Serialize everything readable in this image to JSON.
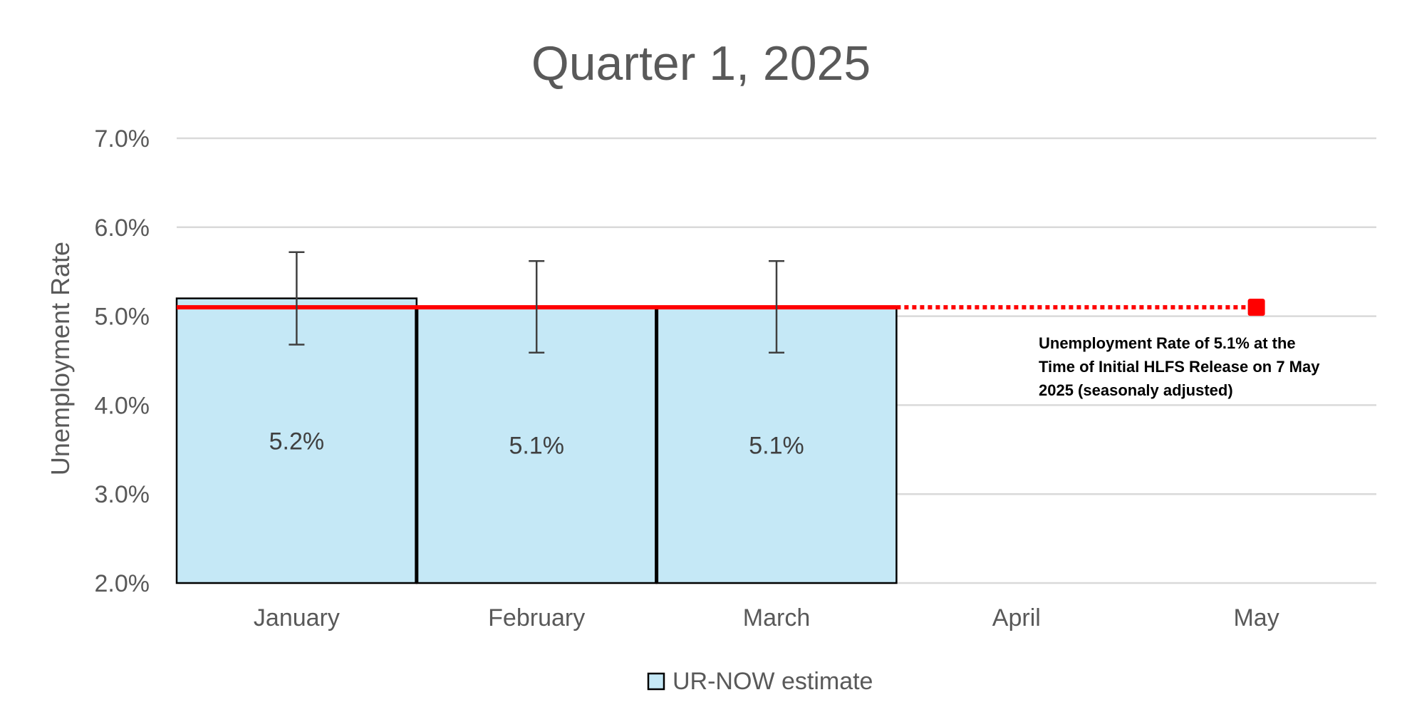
{
  "chart_data": {
    "type": "bar",
    "title": "Quarter 1, 2025",
    "xlabel": "",
    "ylabel": "Unemployment Rate",
    "categories": [
      "January",
      "February",
      "March",
      "April",
      "May"
    ],
    "series": [
      {
        "name": "UR-NOW estimate",
        "values": [
          5.2,
          5.1,
          5.1,
          null,
          null
        ],
        "labels": [
          "5.2%",
          "5.1%",
          "5.1%",
          "",
          ""
        ],
        "error_low": [
          4.68,
          4.59,
          4.59,
          null,
          null
        ],
        "error_high": [
          5.72,
          5.62,
          5.62,
          null,
          null
        ],
        "color": "#C5E8F6"
      }
    ],
    "reference_line": {
      "value": 5.1,
      "solid_until": "March",
      "dotted_until": "May",
      "color": "#FF0000",
      "annotation": [
        "Unemployment Rate of 5.1% at the",
        "Time of Initial HLFS Release on 7 May",
        "2025 (seasonaly adjusted)"
      ]
    },
    "ylim": [
      2.0,
      7.0
    ],
    "yticks": [
      "7.0%",
      "6.0%",
      "5.0%",
      "4.0%",
      "3.0%",
      "2.0%"
    ],
    "ytick_values": [
      7.0,
      6.0,
      5.0,
      4.0,
      3.0,
      2.0
    ],
    "grid": true,
    "legend": "bottom"
  }
}
